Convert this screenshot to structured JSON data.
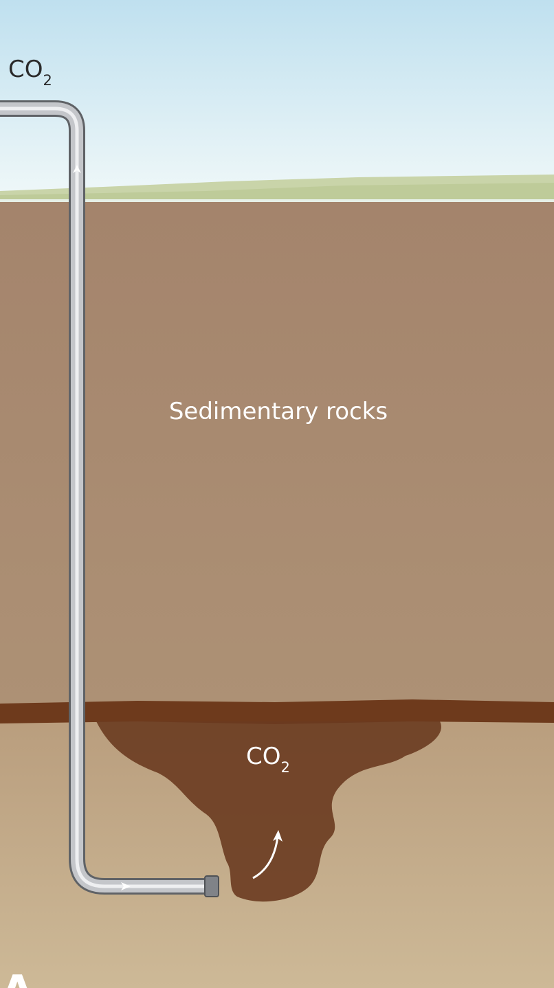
{
  "labels": {
    "injected_gas": {
      "text": "CO",
      "subscript": "2"
    },
    "rock_layer": "Sedimentary rocks",
    "stored_gas": {
      "text": "CO",
      "subscript": "2"
    },
    "panel": "A"
  }
}
